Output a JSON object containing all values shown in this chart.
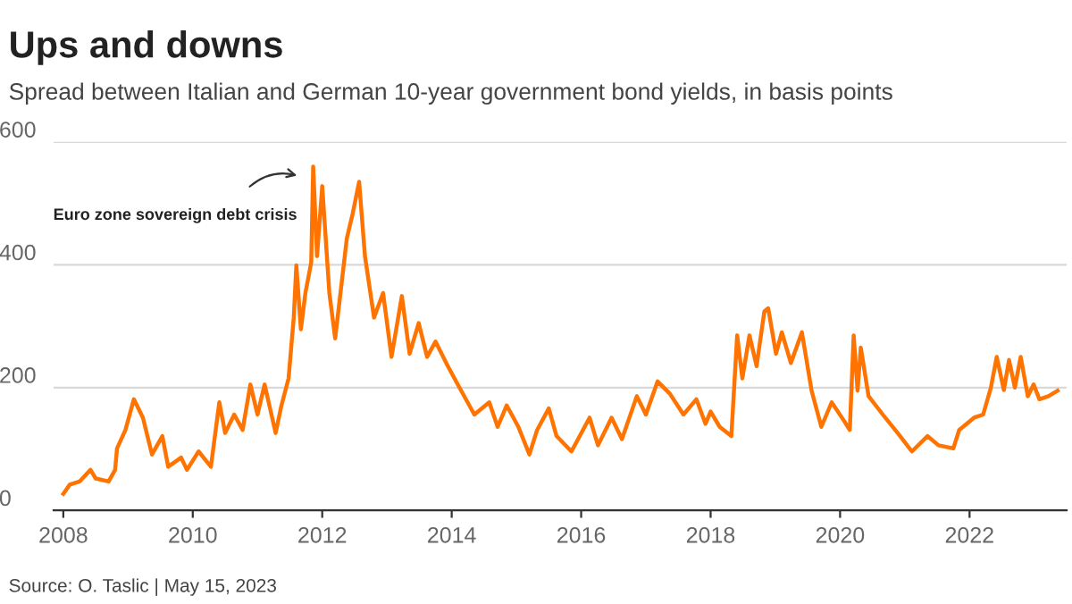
{
  "chart_data": {
    "type": "line",
    "title": "Ups and downs",
    "subtitle": "Spread between Italian and German 10-year government bond yields, in basis points",
    "annotations": [
      "Euro zone sovereign debt crisis",
      "Source: O. Taslic | May 15, 2023"
    ],
    "xlim": [
      2007.85,
      2023.5
    ],
    "xticks": [
      2008,
      2010,
      2012,
      2014,
      2016,
      2018,
      2020,
      2022
    ],
    "ylim": [
      0,
      600
    ],
    "yticks": [
      0,
      200,
      400,
      600
    ],
    "grid": "y",
    "legend": false,
    "marker": "none",
    "line_style": "solid",
    "series": [
      {
        "color": "#ff7300",
        "x": [
          2008.0,
          2008.1,
          2008.25,
          2008.42,
          2008.5,
          2008.7,
          2008.8,
          2008.83,
          2008.96,
          2009.09,
          2009.23,
          2009.37,
          2009.53,
          2009.62,
          2009.82,
          2009.91,
          2010.09,
          2010.28,
          2010.41,
          2010.5,
          2010.64,
          2010.77,
          2010.89,
          2011.0,
          2011.11,
          2011.28,
          2011.37,
          2011.48,
          2011.56,
          2011.6,
          2011.67,
          2011.74,
          2011.83,
          2011.86,
          2011.92,
          2012.0,
          2012.11,
          2012.2,
          2012.38,
          2012.47,
          2012.57,
          2012.66,
          2012.8,
          2012.94,
          2013.07,
          2013.23,
          2013.35,
          2013.49,
          2013.62,
          2013.75,
          2013.94,
          2014.12,
          2014.35,
          2014.58,
          2014.71,
          2014.85,
          2015.03,
          2015.2,
          2015.32,
          2015.5,
          2015.62,
          2015.85,
          2016.13,
          2016.26,
          2016.47,
          2016.63,
          2016.86,
          2017.0,
          2017.18,
          2017.37,
          2017.58,
          2017.78,
          2017.92,
          2018.0,
          2018.14,
          2018.32,
          2018.41,
          2018.49,
          2018.6,
          2018.71,
          2018.83,
          2018.89,
          2019.01,
          2019.1,
          2019.24,
          2019.41,
          2019.56,
          2019.71,
          2019.87,
          2020.06,
          2020.15,
          2020.21,
          2020.27,
          2020.32,
          2020.44,
          2020.66,
          2020.89,
          2021.11,
          2021.35,
          2021.52,
          2021.75,
          2021.84,
          2022.07,
          2022.21,
          2022.33,
          2022.42,
          2022.53,
          2022.61,
          2022.7,
          2022.79,
          2022.9,
          2022.99,
          2023.08,
          2023.22,
          2023.36
        ],
        "values": [
          27,
          42,
          47,
          66,
          52,
          47,
          66,
          101,
          131,
          181,
          151,
          91,
          121,
          71,
          86,
          66,
          96,
          71,
          176,
          126,
          156,
          131,
          205,
          156,
          205,
          126,
          171,
          215,
          314,
          399,
          295,
          354,
          404,
          560,
          414,
          528,
          354,
          280,
          443,
          483,
          535,
          414,
          314,
          354,
          250,
          349,
          255,
          305,
          250,
          275,
          235,
          200,
          156,
          176,
          136,
          171,
          136,
          91,
          131,
          166,
          121,
          96,
          151,
          106,
          151,
          116,
          186,
          156,
          210,
          190,
          156,
          181,
          141,
          161,
          136,
          121,
          285,
          215,
          285,
          235,
          324,
          329,
          255,
          290,
          240,
          290,
          195,
          136,
          176,
          146,
          131,
          285,
          195,
          265,
          186,
          156,
          126,
          96,
          121,
          106,
          101,
          131,
          151,
          156,
          200,
          250,
          196,
          245,
          200,
          250,
          186,
          205,
          181,
          186,
          195
        ]
      }
    ]
  }
}
